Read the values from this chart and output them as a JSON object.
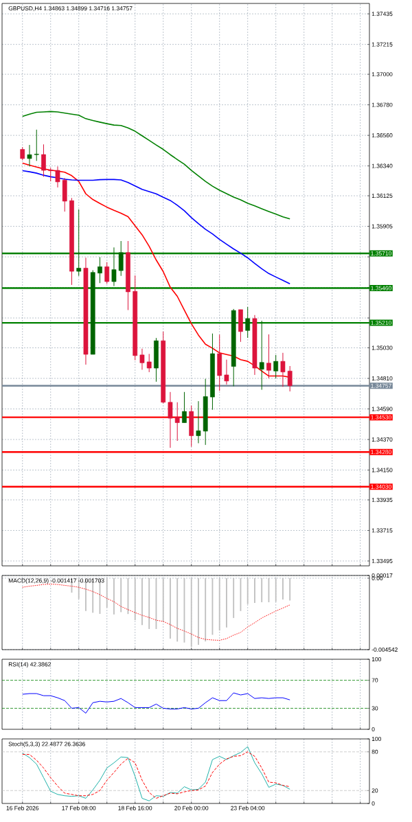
{
  "chart_data": [
    {
      "type": "candlestick",
      "title": "GBPUSD,H4 1.34863 1.34899 1.34716 1.34757",
      "categories": [
        null,
        null,
        null,
        null,
        null,
        null,
        null,
        null,
        null,
        null,
        null,
        null,
        null,
        null,
        null,
        null,
        null,
        null,
        null,
        null,
        null,
        null,
        null,
        null,
        null,
        null,
        null,
        null,
        null,
        null,
        null,
        null,
        null,
        null,
        null,
        null,
        null,
        null,
        null,
        null,
        null,
        null,
        null,
        null,
        null,
        null,
        null,
        null,
        null,
        null
      ],
      "tick_labels": "y",
      "grid": true,
      "ylim": [
        1.3346,
        1.3751
      ],
      "yticks": [
        {
          "value": 1.37435,
          "label": "1.37435"
        },
        {
          "value": 1.37215,
          "label": "1.37215"
        },
        {
          "value": 1.37,
          "label": "1.37000"
        },
        {
          "value": 1.3678,
          "label": "1.36780"
        },
        {
          "value": 1.3656,
          "label": "1.36560"
        },
        {
          "value": 1.3634,
          "label": "1.36340"
        },
        {
          "value": 1.36125,
          "label": "1.36125"
        },
        {
          "value": 1.35905,
          "label": "1.35905"
        },
        {
          "value": 1.35685,
          "label": null
        },
        {
          "value": 1.35465,
          "label": null
        },
        {
          "value": 1.35245,
          "label": null
        },
        {
          "value": 1.3503,
          "label": "1.35030"
        },
        {
          "value": 1.3481,
          "label": "1.34810"
        },
        {
          "value": 1.3459,
          "label": "1.34590"
        },
        {
          "value": 1.3437,
          "label": "1.34370"
        },
        {
          "value": 1.3415,
          "label": "1.34150"
        },
        {
          "value": 1.33935,
          "label": "1.33935"
        },
        {
          "value": 1.33715,
          "label": "1.33715"
        },
        {
          "value": 1.33495,
          "label": "1.33495"
        }
      ],
      "ohlc": [
        [
          1.36459,
          1.36475,
          1.36381,
          1.36393
        ],
        [
          1.36393,
          1.36491,
          1.36336,
          1.36421
        ],
        [
          1.36421,
          1.36601,
          1.36376,
          1.36425
        ],
        [
          1.36422,
          1.36495,
          1.36262,
          1.36308
        ],
        [
          1.3631,
          1.36327,
          1.36229,
          1.36305
        ],
        [
          1.36308,
          1.36336,
          1.36185,
          1.36225
        ],
        [
          1.36237,
          1.36253,
          1.36011,
          1.36086
        ],
        [
          1.3609,
          1.36109,
          1.35483,
          1.35581
        ],
        [
          1.35581,
          1.36027,
          1.35548,
          1.35604
        ],
        [
          1.35604,
          1.35679,
          1.34909,
          1.34983
        ],
        [
          1.34983,
          1.35589,
          1.34983,
          1.35573
        ],
        [
          1.35568,
          1.35683,
          1.35496,
          1.35614
        ],
        [
          1.35614,
          1.35647,
          1.35491,
          1.35507
        ],
        [
          1.35507,
          1.35753,
          1.35475,
          1.35593
        ],
        [
          1.35586,
          1.35799,
          1.35548,
          1.35716
        ],
        [
          1.35716,
          1.35799,
          1.35302,
          1.35433
        ],
        [
          1.35437,
          1.35551,
          1.34941,
          1.34974
        ],
        [
          1.34979,
          1.35024,
          1.34872,
          1.34922
        ],
        [
          1.34929,
          1.34986,
          1.34855,
          1.34884
        ],
        [
          1.34884,
          1.35101,
          1.34786,
          1.35081
        ],
        [
          1.35081,
          1.35147,
          1.3463,
          1.34638
        ],
        [
          1.34638,
          1.34712,
          1.3431,
          1.34523
        ],
        [
          1.34531,
          1.34638,
          1.3436,
          1.34491
        ],
        [
          1.34491,
          1.34712,
          1.34491,
          1.34572
        ],
        [
          1.34572,
          1.34614,
          1.34318,
          1.34397
        ],
        [
          1.34397,
          1.34646,
          1.34343,
          1.34433
        ],
        [
          1.3443,
          1.34807,
          1.34331,
          1.34679
        ],
        [
          1.34676,
          1.35133,
          1.34584,
          1.34988
        ],
        [
          1.34988,
          1.35125,
          1.3472,
          1.3483
        ],
        [
          1.34835,
          1.34945,
          1.34766,
          1.34791
        ],
        [
          1.34896,
          1.3531,
          1.34753,
          1.35299
        ],
        [
          1.35305,
          1.35305,
          1.35073,
          1.35147
        ],
        [
          1.35155,
          1.35324,
          1.35102,
          1.35241
        ],
        [
          1.35241,
          1.35266,
          1.34835,
          1.34884
        ],
        [
          1.34876,
          1.35225,
          1.34728,
          1.34925
        ],
        [
          1.3492,
          1.35127,
          1.3481,
          1.34868
        ],
        [
          1.34863,
          1.34979,
          1.3481,
          1.34933
        ],
        [
          1.34933,
          1.34994,
          1.34749,
          1.34856
        ],
        [
          1.34863,
          1.34899,
          1.34716,
          1.34757
        ],
        null,
        null,
        null,
        null,
        null,
        null,
        null,
        null,
        null,
        null,
        null
      ],
      "colors": [
        "#dc143c",
        "#006400",
        "#006400",
        "#dc143c",
        "#dc143c",
        "#dc143c",
        "#dc143c",
        "#dc143c",
        "#006400",
        "#dc143c",
        "#006400",
        "#006400",
        "#dc143c",
        "#006400",
        "#006400",
        "#dc143c",
        "#dc143c",
        "#dc143c",
        "#dc143c",
        "#006400",
        "#dc143c",
        "#dc143c",
        "#dc143c",
        "#006400",
        "#dc143c",
        "#006400",
        "#006400",
        "#006400",
        "#dc143c",
        "#dc143c",
        "#006400",
        "#dc143c",
        "#006400",
        "#dc143c",
        "#006400",
        "#dc143c",
        "#006400",
        "#dc143c",
        "#dc143c",
        null,
        null,
        null,
        null,
        null,
        null,
        null,
        null,
        null,
        null,
        null
      ],
      "series": [
        {
          "type": "line",
          "color": "#ff0000",
          "values": [
            1.3636,
            1.36345,
            1.36332,
            1.36319,
            1.3631,
            1.36303,
            1.36295,
            1.3627,
            1.36229,
            1.36139,
            1.36098,
            1.3607,
            1.36043,
            1.3602,
            1.35999,
            1.35975,
            1.35909,
            1.35844,
            1.35761,
            1.35663,
            1.35579,
            1.35466,
            1.35401,
            1.35302,
            1.35204,
            1.35122,
            1.35056,
            1.35027,
            1.34994,
            1.34982,
            1.34971,
            1.34945,
            1.34933,
            1.34901,
            1.34863,
            1.34827,
            1.34827,
            1.34827,
            1.34818,
            null,
            null,
            null,
            null,
            null,
            null,
            null,
            null,
            null,
            null,
            null
          ]
        },
        {
          "type": "line",
          "color": "#0000ff",
          "values": [
            1.36306,
            1.36298,
            1.36288,
            1.36273,
            1.36262,
            1.36254,
            1.36244,
            1.36239,
            1.36237,
            1.36237,
            1.36237,
            1.36241,
            1.36242,
            1.36242,
            1.36239,
            1.36221,
            1.36196,
            1.36171,
            1.36155,
            1.36139,
            1.36114,
            1.36091,
            1.36057,
            1.36017,
            1.35968,
            1.35924,
            1.35884,
            1.3585,
            1.35811,
            1.35776,
            1.35742,
            1.35712,
            1.35678,
            1.35638,
            1.35599,
            1.35565,
            1.3554,
            1.35516,
            1.35491,
            null,
            null,
            null,
            null,
            null,
            null,
            null,
            null,
            null,
            null,
            null
          ]
        },
        {
          "type": "line",
          "color": "#008000",
          "values": [
            1.36696,
            1.36713,
            1.36726,
            1.36729,
            1.36732,
            1.36729,
            1.36721,
            1.36713,
            1.36705,
            1.3668,
            1.36667,
            1.36655,
            1.36644,
            1.36634,
            1.36631,
            1.36614,
            1.3659,
            1.36557,
            1.36524,
            1.36491,
            1.36459,
            1.36421,
            1.36386,
            1.36352,
            1.36308,
            1.36268,
            1.36229,
            1.36194,
            1.36165,
            1.3614,
            1.36116,
            1.36096,
            1.36071,
            1.36052,
            1.36032,
            1.36012,
            1.35993,
            1.35973,
            1.35958,
            null,
            null,
            null,
            null,
            null,
            null,
            null,
            null,
            null,
            null,
            null
          ]
        }
      ],
      "ref_lines": [
        {
          "axis": "y",
          "value": 1.3571,
          "label": "1.35710",
          "color": "#008000"
        },
        {
          "axis": "y",
          "value": 1.3546,
          "label": "1.35460",
          "color": "#008000"
        },
        {
          "axis": "y",
          "value": 1.3521,
          "label": "1.35210",
          "color": "#008000"
        },
        {
          "axis": "y",
          "value": 1.34757,
          "label": "1.34757",
          "color": "#778899"
        },
        {
          "axis": "y",
          "value": 1.3453,
          "label": "1.34530",
          "color": "#ff0000"
        },
        {
          "axis": "y",
          "value": 1.3428,
          "label": "1.34280",
          "color": "#ff0000"
        },
        {
          "axis": "y",
          "value": 1.3403,
          "label": "1.34030",
          "color": "#ff0000"
        }
      ]
    },
    {
      "type": "bar",
      "title": "MACD(12,26,9) -0.001417 -0.001703",
      "categories": [
        null,
        null,
        null,
        null,
        null,
        null,
        null,
        null,
        null,
        null,
        null,
        null,
        null,
        null,
        null,
        null,
        null,
        null,
        null,
        null,
        null,
        null,
        null,
        null,
        null,
        null,
        null,
        null,
        null,
        null,
        null,
        null,
        null,
        null,
        null,
        null,
        null,
        null,
        null,
        null,
        null,
        null,
        null,
        null,
        null,
        null,
        null,
        null,
        null,
        null
      ],
      "tick_labels": "y",
      "grid": true,
      "ylim": [
        -0.004542,
        0.00017
      ],
      "yticks": [
        {
          "value": 0.00017,
          "label": "0.00017"
        },
        {
          "value": 0,
          "label": "0.00"
        },
        {
          "value": -0.004542,
          "label": "-0.004542"
        }
      ],
      "series": [
        {
          "type": "bar",
          "color": "#c0c0c0",
          "values": [
            null,
            null,
            null,
            null,
            null,
            null,
            null,
            -0.00092,
            -0.00132,
            -0.00209,
            -0.0022,
            -0.00227,
            -0.00187,
            -0.00231,
            -0.00216,
            -0.00228,
            -0.00267,
            -0.00298,
            -0.00323,
            -0.00323,
            -0.00275,
            -0.00384,
            -0.00403,
            -0.00409,
            -0.00436,
            -0.00424,
            -0.00402,
            -0.0036,
            -0.00333,
            -0.00313,
            -0.00253,
            -0.00209,
            -0.00165,
            -0.00158,
            -0.00153,
            -0.00153,
            -0.0015,
            -0.00136,
            -0.00142,
            null,
            null,
            null,
            null,
            null,
            null,
            null,
            null,
            null,
            null,
            null
          ]
        },
        {
          "type": "line",
          "color": "#ff0000",
          "line_style": "dotted",
          "values": [
            -0.00058,
            -0.00051,
            -0.00046,
            -0.0004,
            -0.00038,
            -0.0004,
            -0.00046,
            -0.00051,
            -0.00058,
            -0.0007,
            -0.00085,
            -0.00105,
            -0.00129,
            -0.0015,
            -0.0018,
            -0.002,
            -0.00219,
            -0.00236,
            -0.0025,
            -0.00267,
            -0.00275,
            -0.00295,
            -0.00319,
            -0.00336,
            -0.00355,
            -0.00377,
            -0.00389,
            -0.00393,
            -0.00395,
            -0.00384,
            -0.00362,
            -0.00345,
            -0.0031,
            -0.00283,
            -0.00253,
            -0.00231,
            -0.00209,
            -0.0019,
            -0.0017,
            null,
            null,
            null,
            null,
            null,
            null,
            null,
            null,
            null,
            null,
            null
          ]
        }
      ]
    },
    {
      "type": "line",
      "title": "RSI(14) 42.3862",
      "categories": [
        null,
        null,
        null,
        null,
        null,
        null,
        null,
        null,
        null,
        null,
        null,
        null,
        null,
        null,
        null,
        null,
        null,
        null,
        null,
        null,
        null,
        null,
        null,
        null,
        null,
        null,
        null,
        null,
        null,
        null,
        null,
        null,
        null,
        null,
        null,
        null,
        null,
        null,
        null,
        null,
        null,
        null,
        null,
        null,
        null,
        null,
        null,
        null,
        null,
        null
      ],
      "tick_labels": "y",
      "grid": "x",
      "ylim": [
        0,
        100
      ],
      "yticks": [
        100,
        70,
        30,
        0
      ],
      "series": [
        {
          "color": "#0000ff",
          "values": [
            50,
            51,
            51,
            48,
            48,
            45,
            41,
            30,
            31,
            23,
            38,
            40,
            39,
            40,
            44,
            38,
            31,
            31,
            31,
            36,
            30,
            29,
            29,
            31,
            29,
            30,
            38,
            45,
            41,
            41,
            52,
            49,
            51,
            44,
            45,
            44,
            45,
            45,
            42,
            null,
            null,
            null,
            null,
            null,
            null,
            null,
            null,
            null,
            null,
            null
          ]
        }
      ],
      "ref_lines": [
        {
          "axis": "y",
          "value": 70,
          "color": "#008000",
          "line_style": "dashed"
        },
        {
          "axis": "y",
          "value": 30,
          "color": "#008000",
          "line_style": "dashed"
        }
      ]
    },
    {
      "type": "line",
      "title": "Stoch(5,3,3) 22.4877 26.3636",
      "categories": [
        "16 Feb 2026",
        null,
        null,
        null,
        null,
        null,
        null,
        null,
        "17 Feb 08:00",
        null,
        null,
        null,
        null,
        null,
        null,
        null,
        "18 Feb 16:00",
        null,
        null,
        null,
        null,
        null,
        null,
        null,
        "20 Feb 00:00",
        null,
        null,
        null,
        null,
        null,
        null,
        null,
        "23 Feb 04:00",
        null,
        null,
        null,
        null,
        null,
        null,
        null,
        null,
        null,
        null,
        null,
        null,
        null,
        null,
        null,
        null,
        null
      ],
      "grid": "x",
      "ylim": [
        0,
        100
      ],
      "yticks": [
        100,
        80,
        20,
        0
      ],
      "series": [
        {
          "color": "#20b2aa",
          "values": [
            78,
            71,
            61,
            40,
            19,
            14,
            12,
            11,
            12,
            8,
            21,
            36,
            55,
            63,
            72,
            71,
            42,
            8,
            4,
            12,
            11,
            17,
            16,
            26,
            21,
            22,
            33,
            68,
            73,
            68,
            74,
            79,
            88,
            63,
            46,
            25,
            30,
            28,
            22,
            null,
            null,
            null,
            null,
            null,
            null,
            null,
            null,
            null,
            null,
            null
          ]
        },
        {
          "color": "#ff0000",
          "line_style": "dashed",
          "values": [
            76,
            76,
            67,
            55,
            40,
            27,
            16,
            14,
            12,
            12,
            14,
            20,
            36,
            48,
            61,
            70,
            63,
            36,
            17,
            8,
            12,
            16,
            15,
            18,
            20,
            21,
            27,
            48,
            61,
            69,
            73,
            74,
            80,
            73,
            55,
            33,
            32,
            28,
            26,
            null,
            null,
            null,
            null,
            null,
            null,
            null,
            null,
            null,
            null,
            null
          ]
        }
      ],
      "ref_lines": [
        {
          "axis": "y",
          "value": 80,
          "color": "#c0c0c0",
          "line_style": "dashed"
        },
        {
          "axis": "y",
          "value": 20,
          "color": "#c0c0c0",
          "line_style": "dashed"
        }
      ]
    }
  ]
}
